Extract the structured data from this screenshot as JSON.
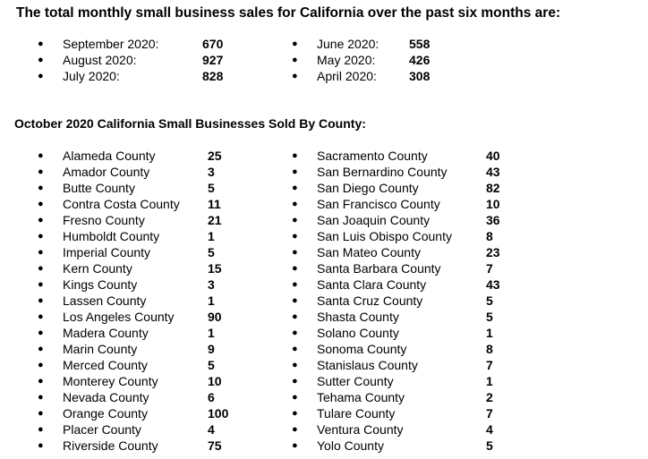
{
  "monthly_heading": "The total monthly small business sales for California over the past six months are:",
  "monthly_sales_left": [
    {
      "month": "September 2020:",
      "value": "670"
    },
    {
      "month": "August 2020:",
      "value": "927"
    },
    {
      "month": "July 2020:",
      "value": "828"
    }
  ],
  "monthly_sales_right": [
    {
      "month": "June 2020:",
      "value": "558"
    },
    {
      "month": "May 2020:",
      "value": "426"
    },
    {
      "month": "April 2020:",
      "value": "308"
    }
  ],
  "county_heading": "October 2020 California Small Businesses Sold By County:",
  "counties_left": [
    {
      "county": "Alameda County",
      "value": "25"
    },
    {
      "county": "Amador County",
      "value": "3"
    },
    {
      "county": "Butte County",
      "value": "5"
    },
    {
      "county": "Contra Costa County",
      "value": "11"
    },
    {
      "county": "Fresno County",
      "value": "21"
    },
    {
      "county": "Humboldt County",
      "value": "1"
    },
    {
      "county": "Imperial County",
      "value": "5"
    },
    {
      "county": "Kern County",
      "value": "15"
    },
    {
      "county": "Kings County",
      "value": "3"
    },
    {
      "county": "Lassen County",
      "value": "1"
    },
    {
      "county": "Los Angeles County",
      "value": "90"
    },
    {
      "county": "Madera County",
      "value": "1"
    },
    {
      "county": "Marin County",
      "value": "9"
    },
    {
      "county": "Merced County",
      "value": "5"
    },
    {
      "county": "Monterey County",
      "value": "10"
    },
    {
      "county": "Nevada County",
      "value": "6"
    },
    {
      "county": "Orange County",
      "value": "100"
    },
    {
      "county": "Placer County",
      "value": "4"
    },
    {
      "county": "Riverside County",
      "value": "75"
    }
  ],
  "counties_right": [
    {
      "county": "Sacramento County",
      "value": "40"
    },
    {
      "county": "San Bernardino County",
      "value": "43"
    },
    {
      "county": "San Diego County",
      "value": "82"
    },
    {
      "county": "San Francisco County",
      "value": "10"
    },
    {
      "county": "San Joaquin County",
      "value": "36"
    },
    {
      "county": "San Luis Obispo County",
      "value": "8"
    },
    {
      "county": "San Mateo County",
      "value": "23"
    },
    {
      "county": "Santa Barbara County",
      "value": "7"
    },
    {
      "county": "Santa Clara County",
      "value": "43"
    },
    {
      "county": "Santa Cruz County",
      "value": "5"
    },
    {
      "county": "Shasta County",
      "value": "5"
    },
    {
      "county": "Solano County",
      "value": "1"
    },
    {
      "county": "Sonoma County",
      "value": "8"
    },
    {
      "county": "Stanislaus County",
      "value": "7"
    },
    {
      "county": "Sutter County",
      "value": "1"
    },
    {
      "county": "Tehama County",
      "value": "2"
    },
    {
      "county": "Tulare County",
      "value": "7"
    },
    {
      "county": "Ventura County",
      "value": "4"
    },
    {
      "county": "Yolo County",
      "value": "5"
    }
  ]
}
